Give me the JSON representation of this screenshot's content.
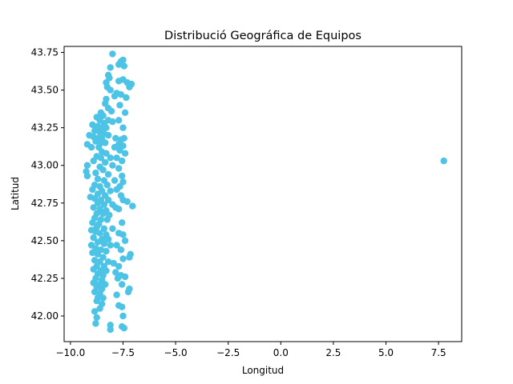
{
  "chart_data": {
    "type": "scatter",
    "title": "Distribució Geográfica de Equipos",
    "xlabel": "Longitud",
    "ylabel": "Latitud",
    "xlim": [
      -10.3,
      8.6
    ],
    "ylim": [
      41.83,
      43.79
    ],
    "xticks": [
      -10.0,
      -7.5,
      -5.0,
      -2.5,
      0.0,
      2.5,
      5.0,
      7.5
    ],
    "xtick_labels": [
      "−10.0",
      "−7.5",
      "−5.0",
      "−2.5",
      "0.0",
      "2.5",
      "5.0",
      "7.5"
    ],
    "yticks": [
      42.0,
      42.25,
      42.5,
      42.75,
      43.0,
      43.25,
      43.5,
      43.75
    ],
    "ytick_labels": [
      "42.00",
      "42.25",
      "42.50",
      "42.75",
      "43.00",
      "43.25",
      "43.50",
      "43.75"
    ],
    "grid": false,
    "point_color": "#4dc3e6",
    "points": [
      [
        -8.0,
        43.74
      ],
      [
        -7.6,
        43.69
      ],
      [
        -7.5,
        43.7
      ],
      [
        -7.7,
        43.67
      ],
      [
        -8.1,
        43.65
      ],
      [
        -7.45,
        43.66
      ],
      [
        -8.2,
        43.6
      ],
      [
        -8.15,
        43.58
      ],
      [
        -7.5,
        43.57
      ],
      [
        -7.3,
        43.55
      ],
      [
        -7.1,
        43.54
      ],
      [
        -7.2,
        43.52
      ],
      [
        -7.7,
        43.56
      ],
      [
        -8.3,
        43.55
      ],
      [
        -8.25,
        43.52
      ],
      [
        -8.1,
        43.5
      ],
      [
        -7.8,
        43.48
      ],
      [
        -7.6,
        43.47
      ],
      [
        -7.35,
        43.45
      ],
      [
        -7.9,
        43.46
      ],
      [
        -8.3,
        43.44
      ],
      [
        -8.35,
        43.41
      ],
      [
        -7.65,
        43.4
      ],
      [
        -8.2,
        43.38
      ],
      [
        -8.05,
        43.36
      ],
      [
        -8.55,
        43.35
      ],
      [
        -8.45,
        43.33
      ],
      [
        -7.4,
        43.35
      ],
      [
        -8.75,
        43.32
      ],
      [
        -8.6,
        43.3
      ],
      [
        -8.2,
        43.3
      ],
      [
        -8.0,
        43.29
      ],
      [
        -7.7,
        43.3
      ],
      [
        -8.4,
        43.28
      ],
      [
        -8.95,
        43.27
      ],
      [
        -8.7,
        43.26
      ],
      [
        -8.5,
        43.25
      ],
      [
        -8.3,
        43.25
      ],
      [
        -7.5,
        43.25
      ],
      [
        -8.85,
        43.23
      ],
      [
        -8.6,
        43.22
      ],
      [
        -8.4,
        43.21
      ],
      [
        -8.2,
        43.2
      ],
      [
        -9.1,
        43.2
      ],
      [
        -8.9,
        43.19
      ],
      [
        -8.7,
        43.18
      ],
      [
        -8.5,
        43.18
      ],
      [
        -7.85,
        43.18
      ],
      [
        -7.6,
        43.17
      ],
      [
        -7.45,
        43.18
      ],
      [
        -8.8,
        43.16
      ],
      [
        -8.55,
        43.15
      ],
      [
        -8.35,
        43.15
      ],
      [
        -9.2,
        43.14
      ],
      [
        -7.7,
        43.14
      ],
      [
        -7.5,
        43.13
      ],
      [
        -9.0,
        43.12
      ],
      [
        -8.65,
        43.12
      ],
      [
        -7.9,
        43.12
      ],
      [
        -7.65,
        43.1
      ],
      [
        -8.5,
        43.09
      ],
      [
        -8.3,
        43.08
      ],
      [
        -7.4,
        43.08
      ],
      [
        -8.75,
        43.06
      ],
      [
        -8.55,
        43.05
      ],
      [
        -8.1,
        43.05
      ],
      [
        -7.8,
        43.05
      ],
      [
        -8.9,
        43.03
      ],
      [
        -8.35,
        43.02
      ],
      [
        -7.55,
        43.03
      ],
      [
        -9.2,
        43.0
      ],
      [
        -8.6,
        42.99
      ],
      [
        -8.0,
        43.0
      ],
      [
        -7.7,
        42.98
      ],
      [
        -8.45,
        42.97
      ],
      [
        -8.8,
        42.95
      ],
      [
        -9.25,
        42.96
      ],
      [
        -8.2,
        42.94
      ],
      [
        -7.55,
        42.93
      ],
      [
        -9.2,
        42.93
      ],
      [
        -8.7,
        42.91
      ],
      [
        -8.4,
        42.9
      ],
      [
        -7.9,
        42.9
      ],
      [
        -7.5,
        42.89
      ],
      [
        -8.85,
        42.87
      ],
      [
        -8.6,
        42.86
      ],
      [
        -8.25,
        42.87
      ],
      [
        -7.65,
        42.86
      ],
      [
        -8.95,
        42.84
      ],
      [
        -8.5,
        42.83
      ],
      [
        -8.1,
        42.83
      ],
      [
        -7.8,
        42.84
      ],
      [
        -8.7,
        42.81
      ],
      [
        -8.35,
        42.8
      ],
      [
        -7.6,
        42.8
      ],
      [
        -9.05,
        42.79
      ],
      [
        -8.85,
        42.78
      ],
      [
        -8.55,
        42.77
      ],
      [
        -8.2,
        42.77
      ],
      [
        -7.5,
        42.77
      ],
      [
        -7.3,
        42.76
      ],
      [
        -8.7,
        42.75
      ],
      [
        -8.4,
        42.74
      ],
      [
        -8.0,
        42.74
      ],
      [
        -7.05,
        42.73
      ],
      [
        -8.9,
        42.72
      ],
      [
        -8.6,
        42.71
      ],
      [
        -8.3,
        42.7
      ],
      [
        -7.85,
        42.72
      ],
      [
        -7.7,
        42.71
      ],
      [
        -8.75,
        42.68
      ],
      [
        -8.45,
        42.68
      ],
      [
        -8.15,
        42.67
      ],
      [
        -8.85,
        42.65
      ],
      [
        -8.55,
        42.64
      ],
      [
        -8.25,
        42.64
      ],
      [
        -8.95,
        42.62
      ],
      [
        -8.65,
        42.61
      ],
      [
        -7.55,
        42.62
      ],
      [
        -8.75,
        42.59
      ],
      [
        -8.4,
        42.58
      ],
      [
        -8.0,
        42.58
      ],
      [
        -9.0,
        42.57
      ],
      [
        -8.8,
        42.56
      ],
      [
        -8.6,
        42.55
      ],
      [
        -8.3,
        42.54
      ],
      [
        -7.7,
        42.55
      ],
      [
        -7.5,
        42.54
      ],
      [
        -8.9,
        42.52
      ],
      [
        -8.5,
        42.51
      ],
      [
        -8.2,
        42.51
      ],
      [
        -7.4,
        42.5
      ],
      [
        -8.7,
        42.49
      ],
      [
        -8.4,
        42.48
      ],
      [
        -9.0,
        42.47
      ],
      [
        -8.1,
        42.47
      ],
      [
        -7.8,
        42.47
      ],
      [
        -8.8,
        42.45
      ],
      [
        -8.55,
        42.44
      ],
      [
        -7.6,
        42.44
      ],
      [
        -8.3,
        42.43
      ],
      [
        -8.95,
        42.42
      ],
      [
        -8.7,
        42.41
      ],
      [
        -7.15,
        42.41
      ],
      [
        -7.2,
        42.39
      ],
      [
        -8.45,
        42.39
      ],
      [
        -7.5,
        42.38
      ],
      [
        -8.85,
        42.37
      ],
      [
        -8.6,
        42.36
      ],
      [
        -8.2,
        42.36
      ],
      [
        -7.95,
        42.35
      ],
      [
        -8.75,
        42.33
      ],
      [
        -8.4,
        42.33
      ],
      [
        -7.7,
        42.33
      ],
      [
        -8.9,
        42.31
      ],
      [
        -8.55,
        42.3
      ],
      [
        -8.3,
        42.3
      ],
      [
        -7.85,
        42.29
      ],
      [
        -8.7,
        42.28
      ],
      [
        -8.45,
        42.27
      ],
      [
        -7.6,
        42.27
      ],
      [
        -8.8,
        42.25
      ],
      [
        -8.5,
        42.24
      ],
      [
        -7.75,
        42.25
      ],
      [
        -7.4,
        42.26
      ],
      [
        -8.9,
        42.22
      ],
      [
        -8.65,
        42.21
      ],
      [
        -8.35,
        42.21
      ],
      [
        -7.55,
        42.21
      ],
      [
        -8.75,
        42.19
      ],
      [
        -8.5,
        42.18
      ],
      [
        -7.2,
        42.18
      ],
      [
        -7.25,
        42.16
      ],
      [
        -8.85,
        42.16
      ],
      [
        -8.6,
        42.15
      ],
      [
        -7.8,
        42.14
      ],
      [
        -8.7,
        42.12
      ],
      [
        -8.45,
        42.12
      ],
      [
        -8.75,
        42.1
      ],
      [
        -8.5,
        42.08
      ],
      [
        -7.7,
        42.07
      ],
      [
        -7.55,
        42.06
      ],
      [
        -8.6,
        42.05
      ],
      [
        -8.85,
        42.03
      ],
      [
        -7.5,
        42.0
      ],
      [
        -8.75,
        41.99
      ],
      [
        -8.8,
        41.95
      ],
      [
        -8.1,
        41.94
      ],
      [
        -7.55,
        41.93
      ],
      [
        -7.45,
        41.92
      ],
      [
        -8.1,
        41.91
      ],
      [
        7.75,
        43.03
      ]
    ]
  }
}
